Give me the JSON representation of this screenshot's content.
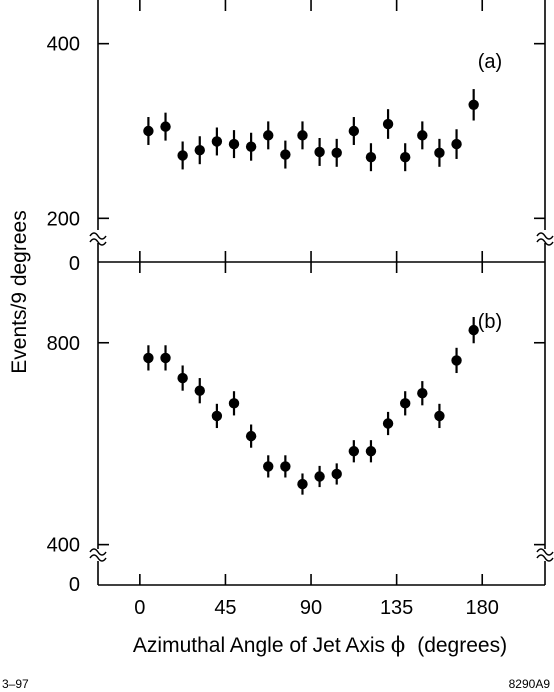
{
  "ylabel": "Events/9 degrees",
  "xlabel": "Azimuthal Angle of Jet Axis ",
  "xlabel_symbol": "ϕ",
  "xlabel_unit": "(degrees)",
  "footer_left": "3–97",
  "footer_right": "8290A9",
  "chart_data": [
    {
      "type": "scatter",
      "panel_label": "(a)",
      "x": [
        4.5,
        13.5,
        22.5,
        31.5,
        40.5,
        49.5,
        58.5,
        67.5,
        76.5,
        85.5,
        94.5,
        103.5,
        112.5,
        121.5,
        130.5,
        139.5,
        148.5,
        157.5,
        166.5,
        175.5
      ],
      "y": [
        300,
        305,
        272,
        278,
        288,
        285,
        282,
        295,
        273,
        295,
        276,
        275,
        300,
        270,
        308,
        270,
        295,
        275,
        285,
        330
      ],
      "yerr": [
        16,
        16,
        16,
        16,
        16,
        16,
        16,
        16,
        16,
        16,
        16,
        16,
        16,
        16,
        17,
        16,
        16,
        16,
        17,
        18
      ],
      "xlim": [
        -22,
        213
      ],
      "ylim": [
        150,
        450
      ],
      "yticks": [
        400,
        200
      ],
      "ybreak_label": "0",
      "xticks": [
        0,
        45,
        90,
        135,
        180
      ]
    },
    {
      "type": "scatter",
      "panel_label": "(b)",
      "x": [
        4.5,
        13.5,
        22.5,
        31.5,
        40.5,
        49.5,
        58.5,
        67.5,
        76.5,
        85.5,
        94.5,
        103.5,
        112.5,
        121.5,
        130.5,
        139.5,
        148.5,
        157.5,
        166.5,
        175.5
      ],
      "y": [
        770,
        770,
        730,
        705,
        655,
        680,
        615,
        555,
        555,
        520,
        535,
        540,
        585,
        585,
        640,
        680,
        700,
        655,
        765,
        825
      ],
      "yerr": [
        25,
        25,
        25,
        25,
        24,
        24,
        23,
        22,
        22,
        21,
        21,
        21,
        22,
        22,
        23,
        24,
        24,
        24,
        25,
        26
      ],
      "xlim": [
        -22,
        213
      ],
      "ylim": [
        320,
        960
      ],
      "yticks": [
        800,
        400
      ],
      "ybreak_label": "0",
      "xticks": [
        0,
        45,
        90,
        135,
        180
      ],
      "xticklabels": [
        "0",
        "45",
        "90",
        "135",
        "180"
      ]
    }
  ]
}
